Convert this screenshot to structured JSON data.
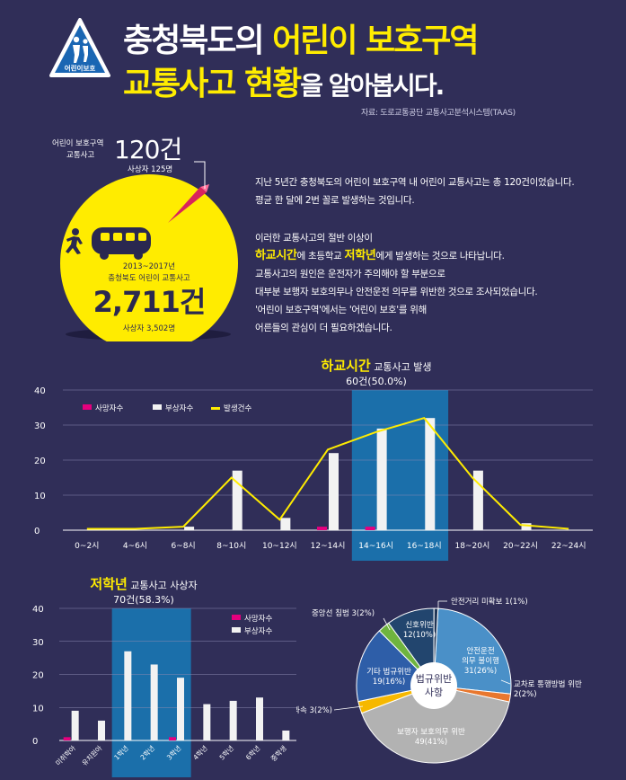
{
  "header": {
    "sign_label": "어린이보호",
    "title_line1_prefix": "충청북도의 ",
    "title_line1_highlight": "어린이 보호구역",
    "title_line2_highlight": "교통사고 현황",
    "title_line2_suffix": "을 알아봅시다.",
    "source": "자료: 도로교통공단 교통사고분석시스템(TAAS)"
  },
  "summary": {
    "zone_label_line1": "어린이 보호구역",
    "zone_label_line2": "교통사고",
    "zone_count": "120건",
    "zone_casualties": "사상자 125명",
    "period": "2013~2017년",
    "total_label": "충청북도 어린이 교통사고",
    "total_count": "2,711건",
    "total_casualties": "사상자 3,502명"
  },
  "paragraph1": [
    "지난 5년간 충청북도의 어린이 보호구역 내 어린이 교통사고는 총 120건이었습니다.",
    "평균 한 달에 2번 꼴로 발생하는 것입니다."
  ],
  "paragraph2": {
    "line1": "이러한 교통사고의 절반 이상이",
    "line2_hl1": "하교시간",
    "line2_mid": "에 초등학교 ",
    "line2_hl2": "저학년",
    "line2_end": "에게 발생하는 것으로 나타납니다.",
    "line3": "교통사고의 원인은 운전자가 주의해야 할 부분으로",
    "line4": "대부분 보행자 보호의무나 안전운전 의무를 위반한 것으로 조사되었습니다.",
    "line5": "'어린이 보호구역'에서는 '어린이 보호'를 위해",
    "line6": "어른들의 관심이 더 필요하겠습니다."
  },
  "chart_data": [
    {
      "type": "bar",
      "title_highlight": "하교시간",
      "title_rest": " 교통사고 발생",
      "subtitle": "60건(50.0%)",
      "categories": [
        "0~2시",
        "4~6시",
        "6~8시",
        "8~10시",
        "10~12시",
        "12~14시",
        "14~16시",
        "16~18시",
        "18~20시",
        "20~22시",
        "22~24시"
      ],
      "series": [
        {
          "name": "사망자수",
          "type": "bar",
          "color": "#e5007e",
          "values": [
            0,
            0,
            0,
            0,
            0,
            1,
            1,
            0,
            0,
            0,
            0
          ]
        },
        {
          "name": "부상자수",
          "type": "bar",
          "color": "#f2f2f2",
          "values": [
            0,
            0,
            1,
            17,
            3.5,
            22,
            29,
            32,
            17,
            2,
            0
          ]
        },
        {
          "name": "발생건수",
          "type": "line",
          "color": "#ffec00",
          "values": [
            0.4,
            0.4,
            1,
            15,
            3,
            23,
            28,
            32,
            15,
            1.5,
            0.4
          ]
        }
      ],
      "highlight_categories": [
        "14~16시",
        "16~18시"
      ],
      "highlight_color": "#1b6faa",
      "ylim": [
        0,
        40
      ],
      "yticks": [
        0,
        10,
        20,
        30,
        40
      ],
      "grid": true,
      "legend_position": "top-left"
    },
    {
      "type": "bar",
      "title_highlight": "저학년",
      "title_rest": " 교통사고 사상자",
      "subtitle": "70건(58.3%)",
      "categories": [
        "미취학아",
        "유치원아",
        "1학년",
        "2학년",
        "3학년",
        "4학년",
        "5학년",
        "6학년",
        "중학생"
      ],
      "series": [
        {
          "name": "사망자수",
          "color": "#e5007e",
          "values": [
            1,
            0,
            0,
            0,
            1,
            0,
            0,
            0,
            0
          ]
        },
        {
          "name": "부상자수",
          "color": "#f2f2f2",
          "values": [
            9,
            6,
            27,
            23,
            19,
            11,
            12,
            13,
            3
          ]
        }
      ],
      "highlight_categories": [
        "1학년",
        "2학년",
        "3학년"
      ],
      "highlight_color": "#1b6faa",
      "ylim": [
        0,
        40
      ],
      "yticks": [
        0,
        10,
        20,
        30,
        40
      ],
      "grid": true,
      "legend_position": "top-right"
    },
    {
      "type": "pie",
      "center_label_line1": "법규위반",
      "center_label_line2": "사항",
      "slices": [
        {
          "label": "안전운전 의무 불이행",
          "label_lines": [
            "안전운전",
            "의무 불이행",
            "31(26%)"
          ],
          "value": 31,
          "color": "#4a90c8"
        },
        {
          "label": "교차로 통행방법 위반",
          "label_lines": [
            "교차로 통행방법 위반",
            "2(2%)"
          ],
          "value": 2,
          "color": "#e8772e"
        },
        {
          "label": "보행자 보호의무 위반",
          "label_lines": [
            "보행자 보호의무 위반",
            "49(41%)"
          ],
          "value": 49,
          "color": "#b2b2b2"
        },
        {
          "label": "과속",
          "label_lines": [
            "과속 3(2%)"
          ],
          "value": 3,
          "color": "#f6b800"
        },
        {
          "label": "기타 법규위반",
          "label_lines": [
            "기타 법규위반",
            "19(16%)"
          ],
          "value": 19,
          "color": "#2e5ea8"
        },
        {
          "label": "중앙선 침범",
          "label_lines": [
            "중앙선 침범 3(2%)"
          ],
          "value": 3,
          "color": "#6fb43f"
        },
        {
          "label": "신호위반",
          "label_lines": [
            "신호위반",
            "12(10%)"
          ],
          "value": 12,
          "color": "#22456e"
        },
        {
          "label": "안전거리 미확보",
          "label_lines": [
            "안전거리 미확보 1(1%)"
          ],
          "value": 1,
          "color": "#1f3657"
        }
      ]
    }
  ],
  "colors": {
    "background": "#302e58",
    "accent_yellow": "#ffec00",
    "accent_pink": "#e5007e",
    "highlight_blue": "#1b6faa"
  },
  "icons": {
    "sign": "school-zone-sign-icon",
    "bus": "school-bus-icon",
    "child": "running-child-icon"
  }
}
